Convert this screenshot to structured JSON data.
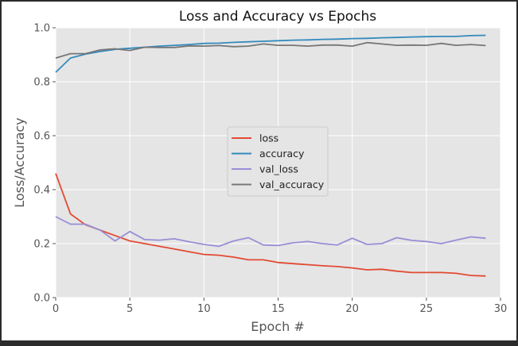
{
  "chart_data": {
    "type": "line",
    "title": "Loss and Accuracy vs Epochs",
    "xlabel": "Epoch #",
    "ylabel": "Loss/Accuracy",
    "xlim": [
      0,
      30
    ],
    "ylim": [
      0.0,
      1.0
    ],
    "xticks": [
      "0",
      "5",
      "10",
      "15",
      "20",
      "25",
      "30"
    ],
    "yticks": [
      "0.0",
      "0.2",
      "0.4",
      "0.6",
      "0.8",
      "1.0"
    ],
    "grid": true,
    "legend_position": "center",
    "x": [
      0,
      1,
      2,
      3,
      4,
      5,
      6,
      7,
      8,
      9,
      10,
      11,
      12,
      13,
      14,
      15,
      16,
      17,
      18,
      19,
      20,
      21,
      22,
      23,
      24,
      25,
      26,
      27,
      28,
      29
    ],
    "series": [
      {
        "name": "loss",
        "color": "#E24A33",
        "values": [
          0.46,
          0.31,
          0.27,
          0.25,
          0.23,
          0.21,
          0.2,
          0.19,
          0.18,
          0.17,
          0.16,
          0.157,
          0.15,
          0.14,
          0.14,
          0.13,
          0.126,
          0.122,
          0.118,
          0.115,
          0.11,
          0.103,
          0.105,
          0.098,
          0.093,
          0.093,
          0.093,
          0.09,
          0.082,
          0.08
        ]
      },
      {
        "name": "accuracy",
        "color": "#348ABD",
        "values": [
          0.835,
          0.888,
          0.902,
          0.912,
          0.92,
          0.924,
          0.928,
          0.932,
          0.935,
          0.938,
          0.942,
          0.943,
          0.946,
          0.948,
          0.95,
          0.952,
          0.954,
          0.955,
          0.957,
          0.958,
          0.96,
          0.961,
          0.963,
          0.964,
          0.966,
          0.967,
          0.968,
          0.968,
          0.971,
          0.972
        ]
      },
      {
        "name": "val_loss",
        "color": "#988ED5",
        "values": [
          0.3,
          0.272,
          0.272,
          0.25,
          0.21,
          0.245,
          0.215,
          0.213,
          0.218,
          0.207,
          0.197,
          0.19,
          0.21,
          0.222,
          0.195,
          0.193,
          0.203,
          0.208,
          0.2,
          0.195,
          0.22,
          0.197,
          0.2,
          0.222,
          0.212,
          0.208,
          0.2,
          0.213,
          0.225,
          0.22
        ]
      },
      {
        "name": "val_accuracy",
        "color": "#777777",
        "values": [
          0.888,
          0.904,
          0.904,
          0.918,
          0.922,
          0.916,
          0.928,
          0.927,
          0.927,
          0.933,
          0.932,
          0.934,
          0.93,
          0.932,
          0.94,
          0.935,
          0.935,
          0.932,
          0.936,
          0.936,
          0.932,
          0.945,
          0.94,
          0.935,
          0.936,
          0.935,
          0.942,
          0.935,
          0.938,
          0.934
        ]
      }
    ]
  }
}
